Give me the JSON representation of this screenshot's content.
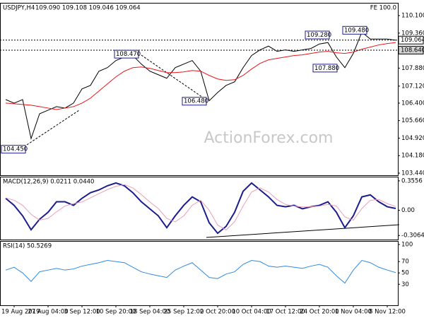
{
  "chart_data": [
    {
      "type": "line",
      "title": "USDJPY,H4",
      "subtitle": "109.090 109.108 109.046 109.064",
      "corner_note": "FE 100.0",
      "watermark": "ActionForex.com",
      "series": [
        {
          "color": "#000000",
          "values": [
            106.55,
            106.4,
            106.55,
            104.9,
            105.95,
            106.1,
            106.25,
            106.19,
            106.4,
            107.0,
            107.15,
            107.75,
            107.9,
            108.2,
            108.35,
            108.41,
            108.05,
            107.75,
            107.6,
            107.45,
            107.9,
            108.05,
            108.2,
            107.75,
            106.5,
            106.85,
            107.15,
            107.3,
            107.9,
            108.41,
            108.65,
            108.81,
            108.59,
            108.65,
            108.59,
            108.65,
            108.71,
            108.9,
            108.96,
            108.35,
            107.9,
            108.5,
            109.4,
            109.11,
            109.11,
            109.11,
            109.06
          ]
        },
        {
          "color": "#e8161b",
          "values": [
            106.4,
            106.37,
            106.34,
            106.31,
            106.25,
            106.19,
            106.13,
            106.19,
            106.25,
            106.4,
            106.61,
            106.91,
            107.21,
            107.51,
            107.75,
            107.9,
            107.93,
            107.87,
            107.78,
            107.69,
            107.69,
            107.72,
            107.78,
            107.75,
            107.57,
            107.42,
            107.36,
            107.39,
            107.57,
            107.84,
            108.08,
            108.23,
            108.29,
            108.35,
            108.41,
            108.44,
            108.5,
            108.56,
            108.59,
            108.53,
            108.5,
            108.56,
            108.68,
            108.77,
            108.86,
            108.92,
            108.96
          ]
        }
      ],
      "ylim": [
        103.35,
        110.61
      ],
      "yticks": [
        {
          "value": 103.44,
          "label": "103.440"
        },
        {
          "value": 104.18,
          "label": "104.180"
        },
        {
          "value": 104.92,
          "label": "104.920"
        },
        {
          "value": 105.66,
          "label": "105.660"
        },
        {
          "value": 106.4,
          "label": "106.400"
        },
        {
          "value": 107.12,
          "label": "107.120"
        },
        {
          "value": 107.88,
          "label": "107.880"
        },
        {
          "value": 109.36,
          "label": "109.360"
        },
        {
          "value": 110.1,
          "label": "110.100"
        }
      ],
      "price_labels": [
        {
          "value": 109.064,
          "label": "109.064"
        },
        {
          "value": 108.64,
          "label": "108.640"
        }
      ],
      "annotations": [
        {
          "value": 104.45,
          "label": "104.450"
        },
        {
          "value": 108.47,
          "label": "108.470"
        },
        {
          "value": 106.48,
          "label": "106.480"
        },
        {
          "value": 109.28,
          "label": "109.280"
        },
        {
          "value": 109.48,
          "label": "109.480"
        },
        {
          "value": 107.88,
          "label": "107.880"
        }
      ]
    },
    {
      "type": "line",
      "title": "MACD(12,26,9) 0.0211 0.0440",
      "series": [
        {
          "color": "#1c1c8e",
          "values": [
            0.144,
            0.059,
            -0.068,
            -0.237,
            -0.11,
            -0.025,
            0.102,
            0.102,
            0.059,
            0.144,
            0.212,
            0.246,
            0.296,
            0.33,
            0.296,
            0.212,
            0.102,
            0.017,
            -0.068,
            -0.212,
            -0.068,
            0.059,
            0.161,
            0.102,
            -0.152,
            -0.28,
            -0.195,
            -0.025,
            0.229,
            0.33,
            0.246,
            0.161,
            0.059,
            0.042,
            0.059,
            0.017,
            0.042,
            0.059,
            0.102,
            -0.025,
            -0.212,
            -0.068,
            0.161,
            0.186,
            0.102,
            0.042,
            0.021
          ]
        },
        {
          "color": "#e8a0b8",
          "values": [
            0.15,
            0.12,
            0.06,
            -0.05,
            -0.12,
            -0.1,
            -0.02,
            0.05,
            0.08,
            0.1,
            0.15,
            0.2,
            0.25,
            0.29,
            0.31,
            0.27,
            0.19,
            0.1,
            0.02,
            -0.1,
            -0.14,
            -0.07,
            0.06,
            0.12,
            0.0,
            -0.18,
            -0.24,
            -0.14,
            0.05,
            0.22,
            0.27,
            0.22,
            0.13,
            0.07,
            0.05,
            0.04,
            0.04,
            0.05,
            0.07,
            0.05,
            -0.08,
            -0.12,
            0.02,
            0.12,
            0.13,
            0.08,
            0.044
          ]
        }
      ],
      "ylim": [
        -0.356,
        0.398
      ],
      "yticks": [
        -0.3064,
        {
          "value": 0,
          "label": "0.00"
        },
        0.3556
      ]
    },
    {
      "type": "line",
      "title": "RSI(14) 50.5269",
      "categories": [
        null,
        "19 Aug 2019",
        null,
        null,
        null,
        "27 Aug 04:00",
        null,
        null,
        null,
        "3 Sep 12:00",
        null,
        null,
        null,
        "10 Sep 20:00",
        null,
        null,
        null,
        "18 Sep 04:00",
        null,
        null,
        null,
        "25 Sep 12:00",
        null,
        null,
        null,
        "2 Oct 20:00",
        null,
        null,
        null,
        "10 Oct 04:00",
        null,
        null,
        null,
        "17 Oct 12:00",
        null,
        null,
        null,
        "24 Oct 20:00",
        null,
        null,
        null,
        "1 Nov 04:00",
        null,
        null,
        null,
        "8 Nov 12:00",
        null
      ],
      "series": [
        {
          "color": "#2f8ae0",
          "values": [
            55,
            60,
            50,
            35,
            52,
            55,
            58,
            55,
            57,
            62,
            65,
            68,
            72,
            70,
            68,
            60,
            52,
            48,
            45,
            42,
            55,
            62,
            68,
            55,
            42,
            40,
            48,
            52,
            65,
            72,
            70,
            62,
            60,
            62,
            60,
            58,
            62,
            65,
            60,
            45,
            32,
            55,
            72,
            68,
            60,
            55,
            50.53
          ]
        }
      ],
      "ylim": [
        -7,
        105
      ],
      "yticks": [
        30,
        50,
        70,
        100
      ]
    }
  ]
}
